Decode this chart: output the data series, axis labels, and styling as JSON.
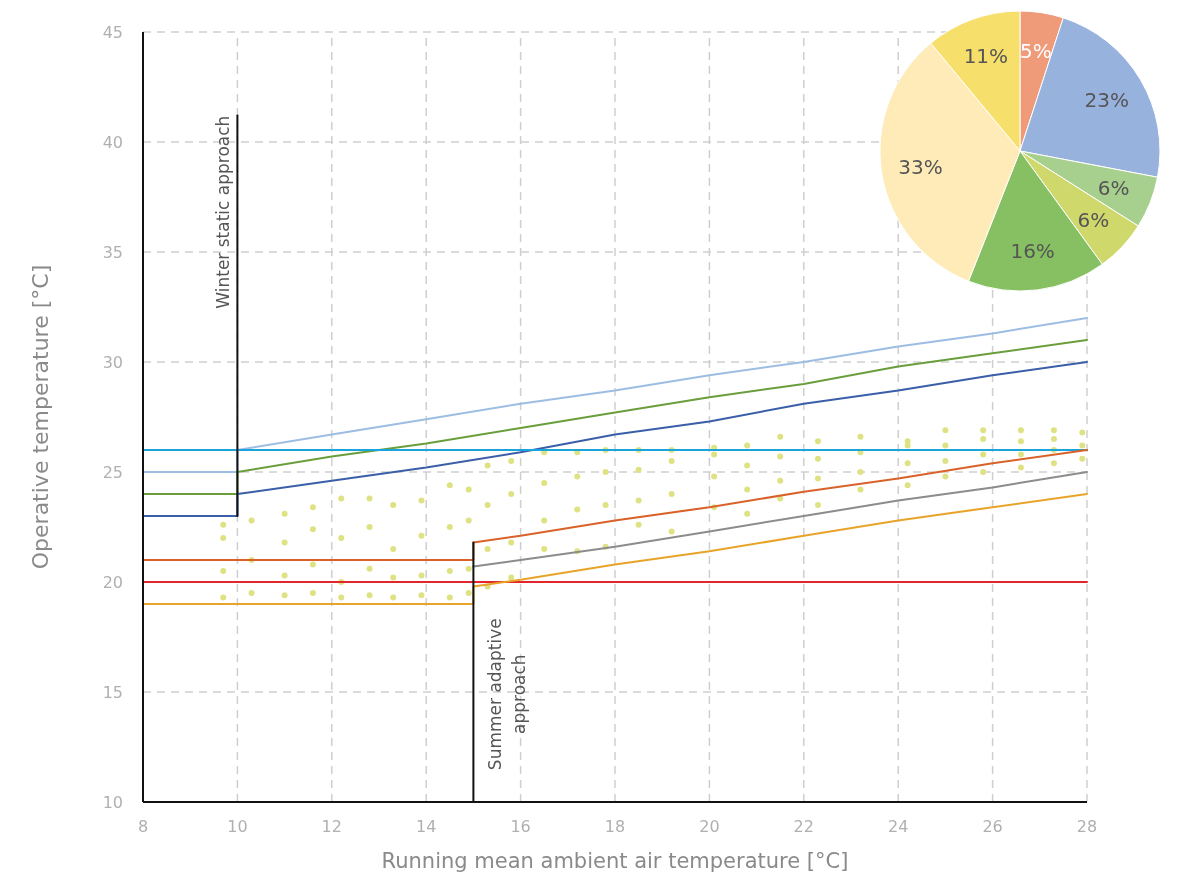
{
  "chart_data": [
    {
      "type": "line",
      "xlabel": "Running mean ambient air temperature [°C]",
      "ylabel": "Operative temperature [°C]",
      "xlim": [
        8,
        28
      ],
      "xticks": [
        8,
        10,
        12,
        14,
        16,
        18,
        20,
        22,
        24,
        26,
        28
      ],
      "ylim": [
        10,
        45
      ],
      "yticks": [
        10,
        15,
        20,
        25,
        30,
        35,
        40,
        45
      ],
      "grid": true,
      "series": [
        {
          "type": "scatter",
          "color": "#dfe283",
          "marker": "circle",
          "x": [
            9.7,
            9.7,
            9.7,
            9.7,
            10.3,
            10.3,
            10.3,
            11,
            11,
            11,
            11,
            11.6,
            11.6,
            11.6,
            11.6,
            12.2,
            12.2,
            12.2,
            12.2,
            12.8,
            12.8,
            12.8,
            12.8,
            13.3,
            13.3,
            13.3,
            13.3,
            13.9,
            13.9,
            13.9,
            13.9,
            14.5,
            14.5,
            14.5,
            14.5,
            14.9,
            14.9,
            14.9,
            14.9,
            15.3,
            15.3,
            15.3,
            15.3,
            15.8,
            15.8,
            15.8,
            15.8,
            16.5,
            16.5,
            16.5,
            16.5,
            17.2,
            17.2,
            17.2,
            17.2,
            17.8,
            17.8,
            17.8,
            17.8,
            18.5,
            18.5,
            18.5,
            18.5,
            19.2,
            19.2,
            19.2,
            19.2,
            20.1,
            20.1,
            20.1,
            20.1,
            20.8,
            20.8,
            20.8,
            20.8,
            21.5,
            21.5,
            21.5,
            21.5,
            22.3,
            22.3,
            22.3,
            22.3,
            23.2,
            23.2,
            23.2,
            23.2,
            24.2,
            24.2,
            24.2,
            24.2,
            25,
            25,
            25,
            25,
            25.8,
            25.8,
            25.8,
            25.8,
            26.6,
            26.6,
            26.6,
            26.6,
            27.3,
            27.3,
            27.3,
            27.3,
            27.9,
            27.9,
            27.9
          ],
          "values": [
            19.3,
            20.5,
            22,
            22.6,
            19.5,
            21,
            22.8,
            19.4,
            20.3,
            21.8,
            23.1,
            19.5,
            20.8,
            22.4,
            23.4,
            19.3,
            20,
            22,
            23.8,
            19.4,
            20.6,
            22.5,
            23.8,
            19.3,
            20.2,
            21.5,
            23.5,
            19.4,
            20.3,
            22.1,
            23.7,
            19.3,
            20.5,
            22.5,
            24.4,
            19.5,
            20.6,
            22.8,
            24.2,
            19.8,
            21.5,
            23.5,
            25.3,
            20.2,
            21.8,
            24,
            25.5,
            21.5,
            22.8,
            24.5,
            25.9,
            21.4,
            23.3,
            24.8,
            25.9,
            21.6,
            23.5,
            25,
            26,
            22.6,
            23.7,
            25.1,
            26,
            22.3,
            24,
            25.5,
            26,
            23.4,
            24.8,
            25.8,
            26.1,
            23.1,
            24.2,
            25.3,
            26.2,
            23.8,
            24.6,
            25.7,
            26.6,
            23.5,
            24.7,
            25.6,
            26.4,
            24.2,
            25,
            25.9,
            26.6,
            24.4,
            25.4,
            26.2,
            26.4,
            24.8,
            25.5,
            26.2,
            26.9,
            25,
            25.8,
            26.5,
            26.9,
            25.2,
            25.8,
            26.4,
            26.9,
            25.4,
            26,
            26.5,
            26.9,
            25.6,
            26.2,
            26.8
          ]
        },
        {
          "type": "line",
          "color": "#9dbde3",
          "line_style": "solid",
          "x": [
            8,
            10,
            10,
            12,
            14,
            16,
            18,
            20,
            22,
            24,
            26,
            28
          ],
          "values": [
            25,
            25,
            26,
            26.7,
            27.4,
            28.1,
            28.7,
            29.4,
            30,
            30.7,
            31.3,
            32
          ]
        },
        {
          "type": "line",
          "color": "#6a9e3c",
          "line_style": "solid",
          "x": [
            8,
            10,
            10,
            12,
            14,
            16,
            18,
            20,
            22,
            24,
            26,
            28
          ],
          "values": [
            24,
            24,
            25,
            25.7,
            26.3,
            27,
            27.7,
            28.4,
            29,
            29.8,
            30.4,
            31
          ]
        },
        {
          "type": "line",
          "color": "#3a5fa8",
          "line_style": "solid",
          "x": [
            8,
            10,
            10,
            12,
            14,
            16,
            18,
            20,
            22,
            24,
            26,
            28
          ],
          "values": [
            23,
            23,
            24,
            24.6,
            25.2,
            25.9,
            26.7,
            27.3,
            28.1,
            28.7,
            29.4,
            30
          ]
        },
        {
          "type": "line",
          "color": "#1ba3dc",
          "line_style": "solid",
          "x": [
            8,
            28
          ],
          "values": [
            26,
            26
          ]
        },
        {
          "type": "line",
          "color": "#d9622b",
          "line_style": "solid",
          "x": [
            8,
            15,
            15,
            16,
            18,
            20,
            22,
            24,
            26,
            28
          ],
          "values": [
            21,
            21,
            21.8,
            22.1,
            22.8,
            23.4,
            24.1,
            24.7,
            25.4,
            26
          ]
        },
        {
          "type": "line",
          "color": "#8c8c8c",
          "line_style": "solid",
          "x": [
            15,
            16,
            18,
            20,
            22,
            24,
            26,
            28
          ],
          "values": [
            20.7,
            21,
            21.6,
            22.3,
            23,
            23.7,
            24.3,
            25
          ]
        },
        {
          "type": "line",
          "color": "#e3262b",
          "line_style": "solid",
          "x": [
            8,
            28
          ],
          "values": [
            20,
            20
          ]
        },
        {
          "type": "line",
          "color": "#e8a42a",
          "line_style": "solid",
          "x": [
            8,
            15,
            15,
            16,
            18,
            20,
            22,
            24,
            26,
            28
          ],
          "values": [
            19,
            19,
            19.8,
            20.1,
            20.8,
            21.4,
            22.1,
            22.8,
            23.4,
            24
          ]
        },
        {
          "type": "line",
          "color": "#111111",
          "line_style": "solid",
          "x": [
            10,
            10
          ],
          "values": [
            23,
            41.2
          ]
        },
        {
          "type": "line",
          "color": "#111111",
          "line_style": "solid",
          "x": [
            15,
            15
          ],
          "values": [
            10,
            21.8
          ]
        }
      ],
      "annotations": [
        {
          "text": "Winter static approach",
          "x": 10,
          "y": 41.2
        },
        {
          "text": "Summer adaptive approach",
          "x": 15,
          "y": 14.9
        }
      ]
    },
    {
      "type": "pie",
      "categories": [
        null,
        null,
        null,
        null,
        null,
        null,
        null
      ],
      "values": [
        5,
        23,
        6,
        6,
        16,
        33,
        11
      ],
      "colors": [
        "#ef9a79",
        "#98b2de",
        "#a7d08f",
        "#cfd86b",
        "#87c062",
        "#feebb8",
        "#f7df6c"
      ],
      "value_labels": [
        "5%",
        "23%",
        "6%",
        "6%",
        "16%",
        "33%",
        "11%"
      ]
    }
  ]
}
